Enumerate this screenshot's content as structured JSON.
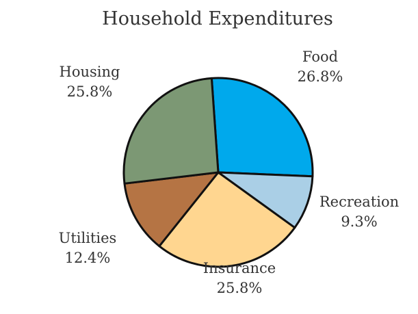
{
  "chart_data": {
    "type": "pie",
    "title": "Household Expenditures",
    "series": [
      {
        "name": "Expenditures",
        "categories": [
          "Food",
          "Recreation",
          "Insurance",
          "Utilities",
          "Housing"
        ],
        "values": [
          26.8,
          9.3,
          25.8,
          12.4,
          25.8
        ],
        "value_labels": [
          "26.8%",
          "9.3%",
          "25.8%",
          "12.4%",
          "25.8%"
        ],
        "colors": [
          "#00a9ec",
          "#aacfe6",
          "#ffd690",
          "#b57444",
          "#7c9874"
        ]
      }
    ],
    "legend": "none",
    "start_angle_deg": -94,
    "direction": "clockwise"
  }
}
